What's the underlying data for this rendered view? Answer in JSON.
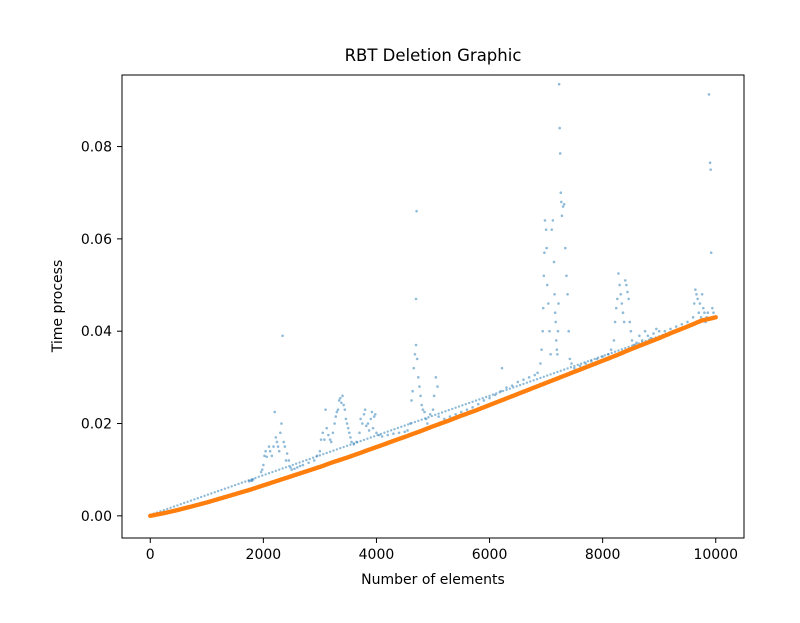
{
  "chart_data": {
    "type": "scatter",
    "title": "RBT Deletion Graphic",
    "xlabel": "Number of elements",
    "ylabel": "Time process",
    "xlim": [
      -500,
      10500
    ],
    "ylim": [
      -0.0048,
      0.0955
    ],
    "x_ticks": [
      0,
      2000,
      4000,
      6000,
      8000,
      10000
    ],
    "x_tick_labels": [
      "0",
      "2000",
      "4000",
      "6000",
      "8000",
      "10000"
    ],
    "y_ticks": [
      0.0,
      0.02,
      0.04,
      0.06,
      0.08
    ],
    "y_tick_labels": [
      "0.00",
      "0.02",
      "0.04",
      "0.06",
      "0.08"
    ],
    "grid": false,
    "series": [
      {
        "color": "#1f77b4",
        "opacity": 0.5,
        "points": [
          [
            1750,
            0.0075
          ],
          [
            1780,
            0.0077
          ],
          [
            1800,
            0.0076
          ],
          [
            1820,
            0.0079
          ],
          [
            1960,
            0.0095
          ],
          [
            1980,
            0.01
          ],
          [
            2000,
            0.011
          ],
          [
            2020,
            0.013
          ],
          [
            2040,
            0.014
          ],
          [
            2060,
            0.0128
          ],
          [
            2100,
            0.015
          ],
          [
            2120,
            0.014
          ],
          [
            2150,
            0.013
          ],
          [
            2180,
            0.015
          ],
          [
            2200,
            0.0225
          ],
          [
            2220,
            0.017
          ],
          [
            2240,
            0.016
          ],
          [
            2260,
            0.015
          ],
          [
            2280,
            0.014
          ],
          [
            2300,
            0.018
          ],
          [
            2320,
            0.02
          ],
          [
            2340,
            0.039
          ],
          [
            2360,
            0.016
          ],
          [
            2380,
            0.015
          ],
          [
            2400,
            0.012
          ],
          [
            2420,
            0.0135
          ],
          [
            2450,
            0.012
          ],
          [
            2480,
            0.0105
          ],
          [
            2500,
            0.01
          ],
          [
            2550,
            0.0102
          ],
          [
            2600,
            0.0105
          ],
          [
            2650,
            0.0108
          ],
          [
            2700,
            0.011
          ],
          [
            2800,
            0.0115
          ],
          [
            2900,
            0.012
          ],
          [
            2950,
            0.013
          ],
          [
            3000,
            0.014
          ],
          [
            3020,
            0.0165
          ],
          [
            3050,
            0.018
          ],
          [
            3080,
            0.0165
          ],
          [
            3100,
            0.023
          ],
          [
            3120,
            0.019
          ],
          [
            3150,
            0.0175
          ],
          [
            3180,
            0.0165
          ],
          [
            3200,
            0.016
          ],
          [
            3230,
            0.018
          ],
          [
            3260,
            0.02
          ],
          [
            3280,
            0.0215
          ],
          [
            3300,
            0.0225
          ],
          [
            3320,
            0.023
          ],
          [
            3340,
            0.025
          ],
          [
            3360,
            0.0255
          ],
          [
            3380,
            0.0245
          ],
          [
            3400,
            0.026
          ],
          [
            3420,
            0.024
          ],
          [
            3440,
            0.023
          ],
          [
            3460,
            0.021
          ],
          [
            3480,
            0.02
          ],
          [
            3500,
            0.019
          ],
          [
            3520,
            0.018
          ],
          [
            3540,
            0.017
          ],
          [
            3560,
            0.016
          ],
          [
            3600,
            0.0155
          ],
          [
            3650,
            0.016
          ],
          [
            3700,
            0.018
          ],
          [
            3720,
            0.021
          ],
          [
            3750,
            0.02
          ],
          [
            3780,
            0.022
          ],
          [
            3800,
            0.023
          ],
          [
            3820,
            0.0195
          ],
          [
            3850,
            0.02
          ],
          [
            3870,
            0.0185
          ],
          [
            3900,
            0.021
          ],
          [
            3920,
            0.0225
          ],
          [
            3940,
            0.019
          ],
          [
            3960,
            0.0215
          ],
          [
            3980,
            0.022
          ],
          [
            4000,
            0.018
          ],
          [
            4050,
            0.0175
          ],
          [
            4100,
            0.0172
          ],
          [
            4200,
            0.0175
          ],
          [
            4300,
            0.0178
          ],
          [
            4400,
            0.018
          ],
          [
            4500,
            0.0182
          ],
          [
            4550,
            0.0185
          ],
          [
            4600,
            0.02
          ],
          [
            4620,
            0.025
          ],
          [
            4640,
            0.027
          ],
          [
            4660,
            0.032
          ],
          [
            4680,
            0.035
          ],
          [
            4700,
            0.037
          ],
          [
            4710,
            0.066
          ],
          [
            4700,
            0.047
          ],
          [
            4720,
            0.034
          ],
          [
            4740,
            0.03
          ],
          [
            4760,
            0.028
          ],
          [
            4780,
            0.026
          ],
          [
            4800,
            0.024
          ],
          [
            4820,
            0.023
          ],
          [
            4850,
            0.0225
          ],
          [
            4880,
            0.021
          ],
          [
            4900,
            0.02
          ],
          [
            4950,
            0.022
          ],
          [
            5000,
            0.023
          ],
          [
            5020,
            0.026
          ],
          [
            5050,
            0.03
          ],
          [
            5080,
            0.028
          ],
          [
            5100,
            0.0215
          ],
          [
            5200,
            0.021
          ],
          [
            5300,
            0.0215
          ],
          [
            5400,
            0.022
          ],
          [
            5500,
            0.0225
          ],
          [
            5600,
            0.023
          ],
          [
            5700,
            0.0235
          ],
          [
            5800,
            0.0242
          ],
          [
            5900,
            0.025
          ],
          [
            6000,
            0.0255
          ],
          [
            6100,
            0.0262
          ],
          [
            6200,
            0.027
          ],
          [
            6220,
            0.032
          ],
          [
            6300,
            0.0278
          ],
          [
            6400,
            0.0282
          ],
          [
            6500,
            0.029
          ],
          [
            6600,
            0.0295
          ],
          [
            6700,
            0.03
          ],
          [
            6800,
            0.0305
          ],
          [
            6850,
            0.031
          ],
          [
            6900,
            0.033
          ],
          [
            6920,
            0.036
          ],
          [
            6940,
            0.04
          ],
          [
            6950,
            0.045
          ],
          [
            6960,
            0.052
          ],
          [
            6970,
            0.057
          ],
          [
            6980,
            0.064
          ],
          [
            7000,
            0.062
          ],
          [
            7010,
            0.058
          ],
          [
            7020,
            0.05
          ],
          [
            7040,
            0.046
          ],
          [
            7060,
            0.04
          ],
          [
            7080,
            0.035
          ],
          [
            7100,
            0.062
          ],
          [
            7120,
            0.064
          ],
          [
            7140,
            0.055
          ],
          [
            7150,
            0.048
          ],
          [
            7160,
            0.044
          ],
          [
            7170,
            0.042
          ],
          [
            7180,
            0.038
          ],
          [
            7190,
            0.036
          ],
          [
            7200,
            0.035
          ],
          [
            7210,
            0.04
          ],
          [
            7220,
            0.046
          ],
          [
            7230,
            0.0935
          ],
          [
            7240,
            0.084
          ],
          [
            7250,
            0.0785
          ],
          [
            7260,
            0.07
          ],
          [
            7270,
            0.068
          ],
          [
            7280,
            0.065
          ],
          [
            7300,
            0.067
          ],
          [
            7320,
            0.0675
          ],
          [
            7340,
            0.058
          ],
          [
            7360,
            0.052
          ],
          [
            7380,
            0.048
          ],
          [
            7400,
            0.04
          ],
          [
            7420,
            0.034
          ],
          [
            7450,
            0.033
          ],
          [
            7500,
            0.032
          ],
          [
            7600,
            0.0325
          ],
          [
            7700,
            0.033
          ],
          [
            7800,
            0.0335
          ],
          [
            7900,
            0.034
          ],
          [
            8000,
            0.0345
          ],
          [
            8100,
            0.035
          ],
          [
            8150,
            0.036
          ],
          [
            8200,
            0.038
          ],
          [
            8220,
            0.042
          ],
          [
            8240,
            0.045
          ],
          [
            8260,
            0.047
          ],
          [
            8280,
            0.0525
          ],
          [
            8300,
            0.05
          ],
          [
            8320,
            0.048
          ],
          [
            8340,
            0.046
          ],
          [
            8360,
            0.044
          ],
          [
            8380,
            0.042
          ],
          [
            8400,
            0.051
          ],
          [
            8420,
            0.05
          ],
          [
            8440,
            0.0485
          ],
          [
            8460,
            0.047
          ],
          [
            8480,
            0.042
          ],
          [
            8500,
            0.04
          ],
          [
            8520,
            0.038
          ],
          [
            8550,
            0.037
          ],
          [
            8600,
            0.0375
          ],
          [
            8650,
            0.039
          ],
          [
            8700,
            0.038
          ],
          [
            8750,
            0.04
          ],
          [
            8800,
            0.039
          ],
          [
            8850,
            0.0385
          ],
          [
            8900,
            0.0395
          ],
          [
            8950,
            0.0405
          ],
          [
            9000,
            0.04
          ],
          [
            9100,
            0.04
          ],
          [
            9200,
            0.0405
          ],
          [
            9300,
            0.041
          ],
          [
            9400,
            0.0415
          ],
          [
            9500,
            0.042
          ],
          [
            9600,
            0.043
          ],
          [
            9620,
            0.046
          ],
          [
            9640,
            0.049
          ],
          [
            9660,
            0.048
          ],
          [
            9680,
            0.047
          ],
          [
            9700,
            0.044
          ],
          [
            9720,
            0.046
          ],
          [
            9740,
            0.043
          ],
          [
            9760,
            0.048
          ],
          [
            9780,
            0.045
          ],
          [
            9800,
            0.044
          ],
          [
            9820,
            0.042
          ],
          [
            9840,
            0.043
          ],
          [
            9860,
            0.044
          ],
          [
            9880,
            0.0913
          ],
          [
            9900,
            0.0765
          ],
          [
            9910,
            0.075
          ],
          [
            9920,
            0.057
          ],
          [
            9940,
            0.045
          ],
          [
            9960,
            0.044
          ],
          [
            9980,
            0.043
          ],
          [
            10000,
            0.0432
          ]
        ]
      },
      {
        "color": "#ff7f0e",
        "points": [
          [
            0,
            0.0
          ],
          [
            250,
            0.0006
          ],
          [
            500,
            0.0013
          ],
          [
            750,
            0.0021
          ],
          [
            1000,
            0.0029
          ],
          [
            1250,
            0.0038
          ],
          [
            1500,
            0.0047
          ],
          [
            1750,
            0.0056
          ],
          [
            2000,
            0.0066
          ],
          [
            2250,
            0.0076
          ],
          [
            2500,
            0.0086
          ],
          [
            2750,
            0.0096
          ],
          [
            3000,
            0.0106
          ],
          [
            3250,
            0.0117
          ],
          [
            3500,
            0.0127
          ],
          [
            3750,
            0.0138
          ],
          [
            4000,
            0.0149
          ],
          [
            4250,
            0.016
          ],
          [
            4500,
            0.0171
          ],
          [
            4750,
            0.0182
          ],
          [
            5000,
            0.0194
          ],
          [
            5250,
            0.0205
          ],
          [
            5500,
            0.0217
          ],
          [
            5750,
            0.0228
          ],
          [
            6000,
            0.024
          ],
          [
            6250,
            0.0252
          ],
          [
            6500,
            0.0264
          ],
          [
            6750,
            0.0276
          ],
          [
            7000,
            0.0288
          ],
          [
            7250,
            0.03
          ],
          [
            7500,
            0.0312
          ],
          [
            7750,
            0.0324
          ],
          [
            8000,
            0.0336
          ],
          [
            8250,
            0.0348
          ],
          [
            8500,
            0.0361
          ],
          [
            8750,
            0.0373
          ],
          [
            9000,
            0.0385
          ],
          [
            9250,
            0.0398
          ],
          [
            9500,
            0.041
          ],
          [
            9750,
            0.0423
          ],
          [
            10000,
            0.043
          ]
        ]
      }
    ]
  }
}
